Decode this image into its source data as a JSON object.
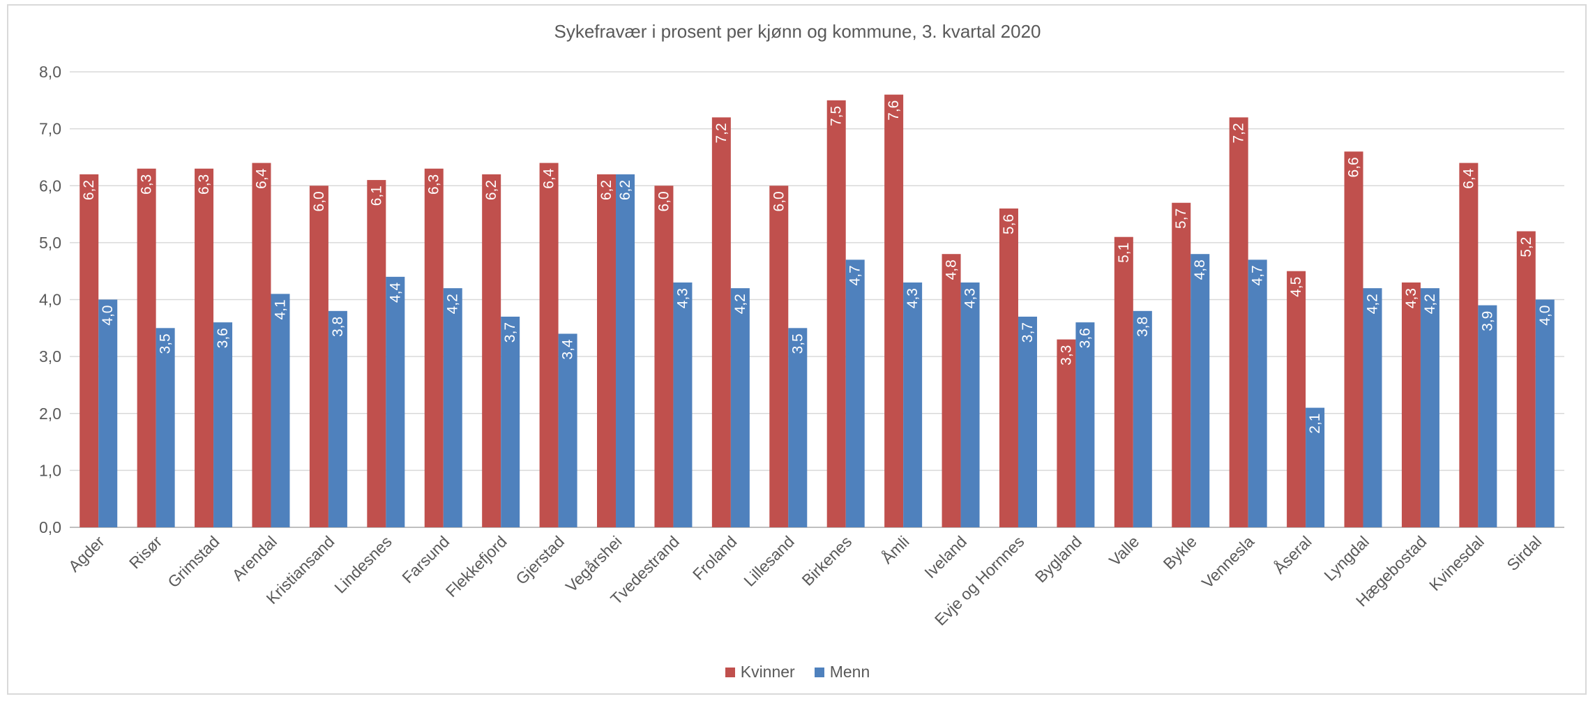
{
  "chart_data": {
    "type": "bar",
    "title": "Sykefravær i prosent per kjønn og kommune, 3. kvartal 2020",
    "xlabel": "",
    "ylabel": "",
    "ylim": [
      0,
      8
    ],
    "yticks": [
      "0,0",
      "1,0",
      "2,0",
      "3,0",
      "4,0",
      "5,0",
      "6,0",
      "7,0",
      "8,0"
    ],
    "grid": true,
    "legend_position": "bottom",
    "categories": [
      "Agder",
      "Risør",
      "Grimstad",
      "Arendal",
      "Kristiansand",
      "Lindesnes",
      "Farsund",
      "Flekkefjord",
      "Gjerstad",
      "Vegårshei",
      "Tvedestrand",
      "Froland",
      "Lillesand",
      "Birkenes",
      "Åmli",
      "Iveland",
      "Evje og Hornnes",
      "Bygland",
      "Valle",
      "Bykle",
      "Vennesla",
      "Åseral",
      "Lyngdal",
      "Hægebostad",
      "Kvinesdal",
      "Sirdal"
    ],
    "series": [
      {
        "name": "Kvinner",
        "color": "#c0504d",
        "values": [
          6.2,
          6.3,
          6.3,
          6.4,
          6.0,
          6.1,
          6.3,
          6.2,
          6.4,
          6.2,
          6.0,
          7.2,
          6.0,
          7.5,
          7.6,
          4.8,
          5.6,
          3.3,
          5.1,
          5.7,
          7.2,
          4.5,
          6.6,
          4.3,
          6.4,
          5.2
        ],
        "labels": [
          "6,2",
          "6,3",
          "6,3",
          "6,4",
          "6,0",
          "6,1",
          "6,3",
          "6,2",
          "6,4",
          "6,2",
          "6,0",
          "7,2",
          "6,0",
          "7,5",
          "7,6",
          "4,8",
          "5,6",
          "3,3",
          "5,1",
          "5,7",
          "7,2",
          "4,5",
          "6,6",
          "4,3",
          "6,4",
          "5,2"
        ]
      },
      {
        "name": "Menn",
        "color": "#4f81bd",
        "values": [
          4.0,
          3.5,
          3.6,
          4.1,
          3.8,
          4.4,
          4.2,
          3.7,
          3.4,
          6.2,
          4.3,
          4.2,
          3.5,
          4.7,
          4.3,
          4.3,
          3.7,
          3.6,
          3.8,
          4.8,
          4.7,
          2.1,
          4.2,
          4.2,
          3.9,
          4.0
        ],
        "labels": [
          "4,0",
          "3,5",
          "3,6",
          "4,1",
          "3,8",
          "4,4",
          "4,2",
          "3,7",
          "3,4",
          "6,2",
          "4,3",
          "4,2",
          "3,5",
          "4,7",
          "4,3",
          "4,3",
          "3,7",
          "3,6",
          "3,8",
          "4,8",
          "4,7",
          "2,1",
          "4,2",
          "4,2",
          "3,9",
          "4,0"
        ]
      }
    ]
  }
}
